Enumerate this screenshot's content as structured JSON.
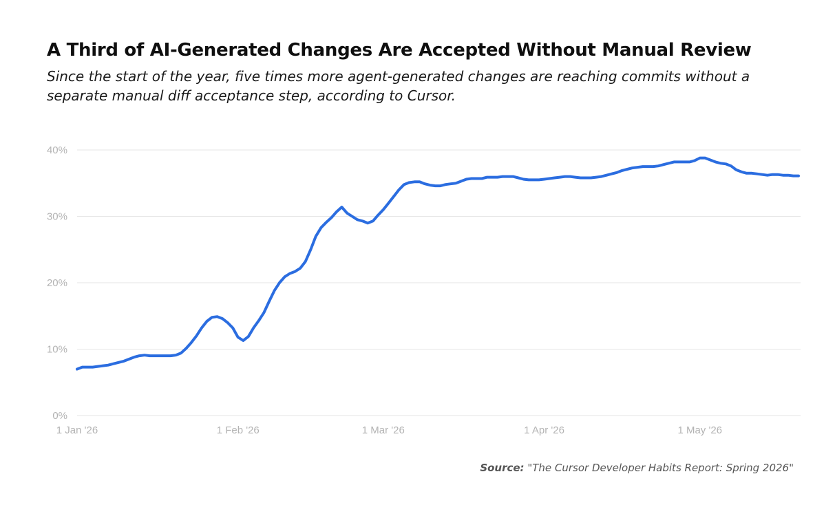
{
  "title": "A Third of AI-Generated Changes Are Accepted Without Manual Review",
  "subtitle": "Since the start of the year, five times more agent-generated changes are reaching commits without a separate manual diff acceptance step, according to Cursor.",
  "source": {
    "label": "Source:",
    "text": "\"The Cursor Developer Habits Report: Spring 2026\""
  },
  "colors": {
    "line": "#2b6de0",
    "grid": "#e6e6e6",
    "tick_text": "#b3b3b3"
  },
  "chart_data": {
    "type": "line",
    "title": "A Third of AI-Generated Changes Are Accepted Without Manual Review",
    "xlabel": "",
    "ylabel": "",
    "xlim": [
      "2026-01-01",
      "2026-05-20"
    ],
    "ylim": [
      0,
      40
    ],
    "grid": true,
    "legend": "none",
    "y_ticks": [
      0,
      10,
      20,
      30,
      40
    ],
    "y_tick_labels": [
      "0%",
      "10%",
      "20%",
      "30%",
      "40%"
    ],
    "x_ticks": [
      "2026-01-01",
      "2026-02-01",
      "2026-03-01",
      "2026-04-01",
      "2026-05-01"
    ],
    "x_tick_labels": [
      "1 Jan '26",
      "1 Feb '26",
      "1 Mar '26",
      "1 Apr '26",
      "1 May '26"
    ],
    "series": [
      {
        "x": [
          "2026-01-01",
          "2026-01-02",
          "2026-01-03",
          "2026-01-04",
          "2026-01-05",
          "2026-01-06",
          "2026-01-07",
          "2026-01-08",
          "2026-01-09",
          "2026-01-10",
          "2026-01-11",
          "2026-01-12",
          "2026-01-13",
          "2026-01-14",
          "2026-01-15",
          "2026-01-16",
          "2026-01-17",
          "2026-01-18",
          "2026-01-19",
          "2026-01-20",
          "2026-01-21",
          "2026-01-22",
          "2026-01-23",
          "2026-01-24",
          "2026-01-25",
          "2026-01-26",
          "2026-01-27",
          "2026-01-28",
          "2026-01-29",
          "2026-01-30",
          "2026-01-31",
          "2026-02-01",
          "2026-02-02",
          "2026-02-03",
          "2026-02-04",
          "2026-02-05",
          "2026-02-06",
          "2026-02-07",
          "2026-02-08",
          "2026-02-09",
          "2026-02-10",
          "2026-02-11",
          "2026-02-12",
          "2026-02-13",
          "2026-02-14",
          "2026-02-15",
          "2026-02-16",
          "2026-02-17",
          "2026-02-18",
          "2026-02-19",
          "2026-02-20",
          "2026-02-21",
          "2026-02-22",
          "2026-02-23",
          "2026-02-24",
          "2026-02-25",
          "2026-02-26",
          "2026-02-27",
          "2026-02-28",
          "2026-03-01",
          "2026-03-02",
          "2026-03-03",
          "2026-03-04",
          "2026-03-05",
          "2026-03-06",
          "2026-03-07",
          "2026-03-08",
          "2026-03-09",
          "2026-03-10",
          "2026-03-11",
          "2026-03-12",
          "2026-03-13",
          "2026-03-14",
          "2026-03-15",
          "2026-03-16",
          "2026-03-17",
          "2026-03-18",
          "2026-03-19",
          "2026-03-20",
          "2026-03-21",
          "2026-03-22",
          "2026-03-23",
          "2026-03-24",
          "2026-03-25",
          "2026-03-26",
          "2026-03-27",
          "2026-03-28",
          "2026-03-29",
          "2026-03-30",
          "2026-03-31",
          "2026-04-01",
          "2026-04-02",
          "2026-04-03",
          "2026-04-04",
          "2026-04-05",
          "2026-04-06",
          "2026-04-07",
          "2026-04-08",
          "2026-04-09",
          "2026-04-10",
          "2026-04-11",
          "2026-04-12",
          "2026-04-13",
          "2026-04-14",
          "2026-04-15",
          "2026-04-16",
          "2026-04-17",
          "2026-04-18",
          "2026-04-19",
          "2026-04-20",
          "2026-04-21",
          "2026-04-22",
          "2026-04-23",
          "2026-04-24",
          "2026-04-25",
          "2026-04-26",
          "2026-04-27",
          "2026-04-28",
          "2026-04-29",
          "2026-04-30",
          "2026-05-01",
          "2026-05-02",
          "2026-05-03",
          "2026-05-04",
          "2026-05-05",
          "2026-05-06",
          "2026-05-07",
          "2026-05-08",
          "2026-05-09",
          "2026-05-10",
          "2026-05-11",
          "2026-05-12",
          "2026-05-13",
          "2026-05-14",
          "2026-05-15",
          "2026-05-16",
          "2026-05-17",
          "2026-05-18",
          "2026-05-19",
          "2026-05-20"
        ],
        "values": [
          7.0,
          7.3,
          7.3,
          7.3,
          7.4,
          7.5,
          7.6,
          7.8,
          8.0,
          8.2,
          8.5,
          8.8,
          9.0,
          9.1,
          9.0,
          9.0,
          9.0,
          9.0,
          9.0,
          9.1,
          9.4,
          10.1,
          11.0,
          12.0,
          13.2,
          14.2,
          14.8,
          14.9,
          14.6,
          14.0,
          13.2,
          11.8,
          11.3,
          11.9,
          13.2,
          14.3,
          15.5,
          17.2,
          18.8,
          20.0,
          20.9,
          21.4,
          21.7,
          22.2,
          23.2,
          25.0,
          27.0,
          28.3,
          29.1,
          29.8,
          30.7,
          31.4,
          30.5,
          30.0,
          29.5,
          29.3,
          29.0,
          29.3,
          30.2,
          31.0,
          32.0,
          33.0,
          34.0,
          34.8,
          35.1,
          35.2,
          35.2,
          34.9,
          34.7,
          34.6,
          34.6,
          34.8,
          34.9,
          35.0,
          35.3,
          35.6,
          35.7,
          35.7,
          35.7,
          35.9,
          35.9,
          35.9,
          36.0,
          36.0,
          36.0,
          35.8,
          35.6,
          35.5,
          35.5,
          35.5,
          35.6,
          35.7,
          35.8,
          35.9,
          36.0,
          36.0,
          35.9,
          35.8,
          35.8,
          35.8,
          35.9,
          36.0,
          36.2,
          36.4,
          36.6,
          36.9,
          37.1,
          37.3,
          37.4,
          37.5,
          37.5,
          37.5,
          37.6,
          37.8,
          38.0,
          38.2,
          38.2,
          38.2,
          38.2,
          38.4,
          38.8,
          38.8,
          38.5,
          38.2,
          38.0,
          37.9,
          37.6,
          37.0,
          36.7,
          36.5,
          36.5,
          36.4,
          36.3,
          36.2,
          36.3,
          36.3,
          36.2,
          36.2,
          36.1,
          36.1
        ]
      }
    ]
  }
}
